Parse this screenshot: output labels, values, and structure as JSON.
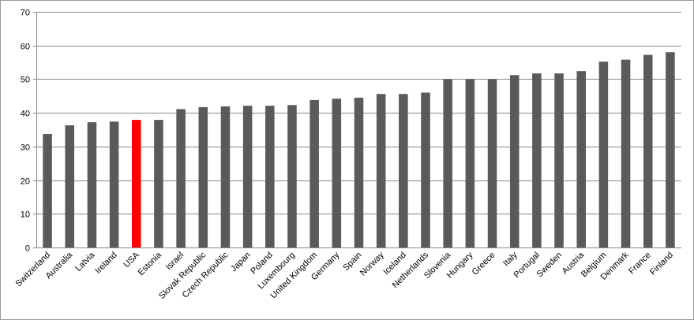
{
  "chart_data": {
    "type": "bar",
    "title": "",
    "xlabel": "",
    "ylabel": "",
    "ylim": [
      0,
      70
    ],
    "yticks": [
      0,
      10,
      20,
      30,
      40,
      50,
      60,
      70
    ],
    "grid": true,
    "legend": "none",
    "categories": [
      "Switzerland",
      "Australia",
      "Latvia",
      "Ireland",
      "USA",
      "Estonia",
      "Israel",
      "Slovak Republic",
      "Czech Republic",
      "Japan",
      "Poland",
      "Luxembourg",
      "United Kingdom",
      "Germany",
      "Spain",
      "Norway",
      "Iceland",
      "Netherlands",
      "Slovenia",
      "Hungary",
      "Greece",
      "Italy",
      "Portugal",
      "Sweden",
      "Austria",
      "Belgium",
      "Denmark",
      "France",
      "Finland"
    ],
    "values": [
      33.7,
      36.3,
      37.2,
      37.4,
      37.9,
      37.9,
      41.1,
      41.7,
      41.9,
      42.1,
      42.1,
      42.3,
      43.8,
      44.2,
      44.5,
      45.6,
      45.6,
      46.0,
      50.0,
      50.0,
      50.0,
      51.2,
      51.7,
      51.7,
      52.4,
      55.2,
      55.8,
      57.2,
      58.0
    ],
    "colors": {
      "default": "#5a5a5a",
      "highlight": "#ff0000",
      "grid": "#888888",
      "axis": "#888888"
    },
    "highlight_category": "USA"
  }
}
